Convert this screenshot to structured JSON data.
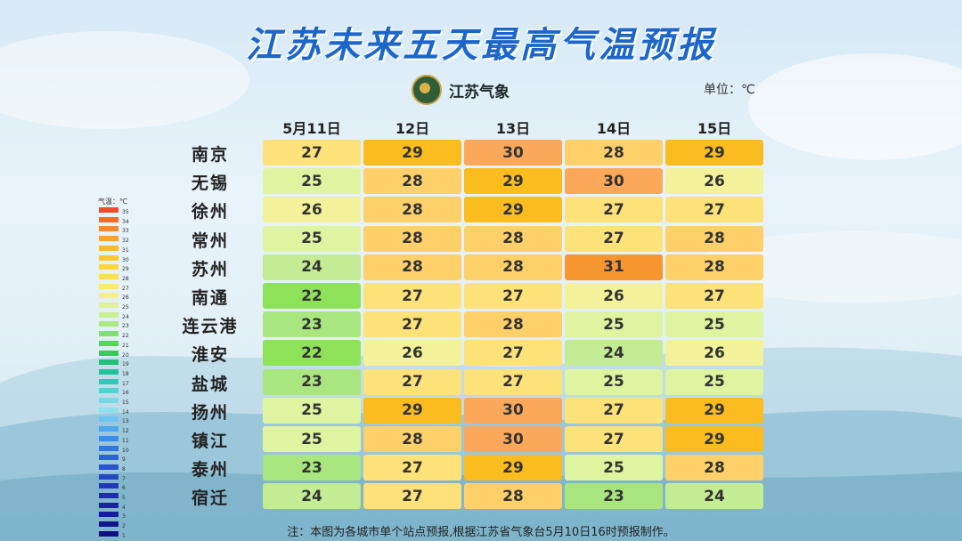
{
  "title": "江苏未来五天最高气温预报",
  "brand": "江苏气象",
  "unit_label": "单位：℃",
  "note": "注：本图为各城市单个站点预报,根据江苏省气象台5月10日16时预报制作。",
  "legend": {
    "title": "气温：℃",
    "levels": [
      35,
      34,
      33,
      32,
      31,
      30,
      29,
      28,
      27,
      26,
      25,
      24,
      23,
      22,
      21,
      20,
      19,
      18,
      17,
      16,
      15,
      14,
      13,
      12,
      11,
      10,
      9,
      8,
      7,
      6,
      5,
      4,
      3,
      2,
      1
    ],
    "colors": [
      "#f04a2a",
      "#f46a2a",
      "#f58a2c",
      "#f7a32c",
      "#f9b92a",
      "#fbc92c",
      "#fdd53a",
      "#fde04f",
      "#fdea6a",
      "#f5f08a",
      "#e1f09a",
      "#c8ef90",
      "#a8ea80",
      "#7fe06a",
      "#55d84f",
      "#33cc55",
      "#22c076",
      "#22c29a",
      "#33c7b8",
      "#55cfd0",
      "#77d8e3",
      "#8fe0ef",
      "#6fc3f0",
      "#4da7ec",
      "#3a8de6",
      "#2f76de",
      "#2a63d6",
      "#2753cc",
      "#2346c2",
      "#2039b8",
      "#1c2eae",
      "#1924a4",
      "#161b9a",
      "#131590",
      "#100f86"
    ]
  },
  "chart_data": {
    "type": "heatmap",
    "title": "江苏未来五天最高气温预报",
    "unit": "℃",
    "columns": [
      "5月11日",
      "12日",
      "13日",
      "14日",
      "15日"
    ],
    "rows": [
      "南京",
      "无锡",
      "徐州",
      "常州",
      "苏州",
      "南通",
      "连云港",
      "淮安",
      "盐城",
      "扬州",
      "镇江",
      "泰州",
      "宿迁"
    ],
    "values": [
      [
        27,
        29,
        30,
        28,
        29
      ],
      [
        25,
        28,
        29,
        30,
        26
      ],
      [
        26,
        28,
        29,
        27,
        27
      ],
      [
        25,
        28,
        28,
        27,
        28
      ],
      [
        24,
        28,
        28,
        31,
        28
      ],
      [
        22,
        27,
        27,
        26,
        27
      ],
      [
        23,
        27,
        28,
        25,
        25
      ],
      [
        22,
        26,
        27,
        24,
        26
      ],
      [
        23,
        27,
        27,
        25,
        25
      ],
      [
        25,
        29,
        30,
        27,
        29
      ],
      [
        25,
        28,
        30,
        27,
        29
      ],
      [
        23,
        27,
        29,
        25,
        28
      ],
      [
        24,
        27,
        28,
        23,
        24
      ]
    ]
  },
  "cell_colors": {
    "22": "#8ee25a",
    "23": "#a9e680",
    "24": "#c3ec95",
    "25": "#def4a0",
    "26": "#f3f29a",
    "27": "#fde27a",
    "28": "#fdd06a",
    "29": "#fbbc1f",
    "30": "#fca85a",
    "31": "#f7952f"
  }
}
